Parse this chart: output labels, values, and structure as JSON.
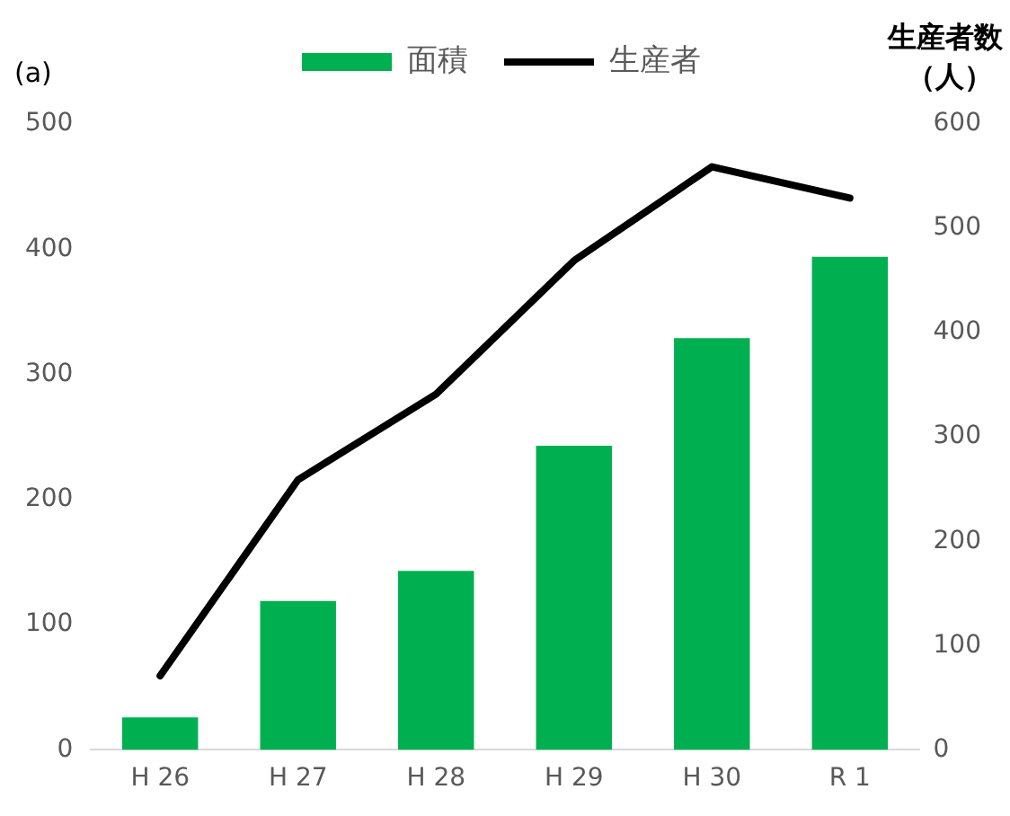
{
  "chart_data": {
    "type": "bar",
    "categories": [
      "H 26",
      "H 27",
      "H 28",
      "H 29",
      "H 30",
      "R 1"
    ],
    "series": [
      {
        "name": "面積",
        "color": "#00b050",
        "values": [
          26,
          119,
          143,
          243,
          329,
          394
        ]
      },
      {
        "name": "生産者",
        "type": "line",
        "color": "#000000",
        "axis": "y2",
        "values": [
          71,
          259,
          341,
          469,
          559,
          529
        ]
      }
    ],
    "ylim": [
      0,
      500
    ],
    "yticks": [
      0,
      100,
      200,
      300,
      400,
      500
    ],
    "y2lim": [
      0,
      600
    ],
    "y2ticks": [
      0,
      100,
      200,
      300,
      400,
      500,
      600
    ],
    "y2label": "生産者数（人）",
    "annotations": [
      "(a)"
    ],
    "legend": "top",
    "grid": false,
    "marker": "none",
    "line_style": "solid"
  }
}
